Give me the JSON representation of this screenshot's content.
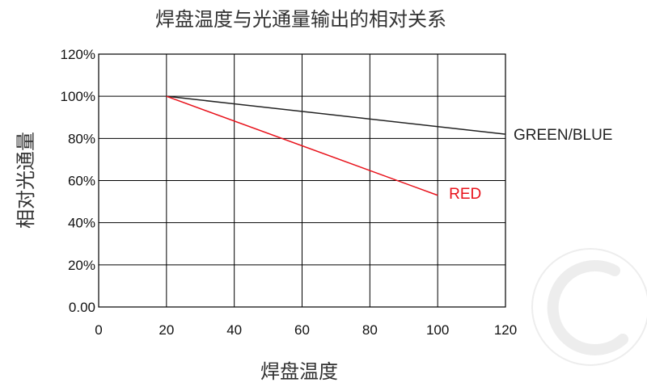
{
  "chart_data": {
    "type": "line",
    "title": "焊盘温度与光通量输出的相对关系",
    "xlabel": "焊盘温度",
    "ylabel": "相对光通量",
    "xlim": [
      0,
      120
    ],
    "ylim": [
      0,
      120
    ],
    "x_ticks": [
      0,
      20,
      40,
      60,
      80,
      100,
      120
    ],
    "x_tick_labels": [
      "0",
      "20",
      "40",
      "60",
      "80",
      "100",
      "120"
    ],
    "y_ticks": [
      0,
      20,
      40,
      60,
      80,
      100,
      120
    ],
    "y_tick_labels": [
      "0.00",
      "20%",
      "40%",
      "60%",
      "80%",
      "100%",
      "120%"
    ],
    "grid": true,
    "legend": "inline",
    "series": [
      {
        "name": "GREEN/BLUE",
        "color": "#222222",
        "x": [
          20,
          120
        ],
        "y": [
          100,
          82
        ]
      },
      {
        "name": "RED",
        "color": "#e8121b",
        "x": [
          20,
          100
        ],
        "y": [
          100,
          53
        ]
      }
    ]
  }
}
